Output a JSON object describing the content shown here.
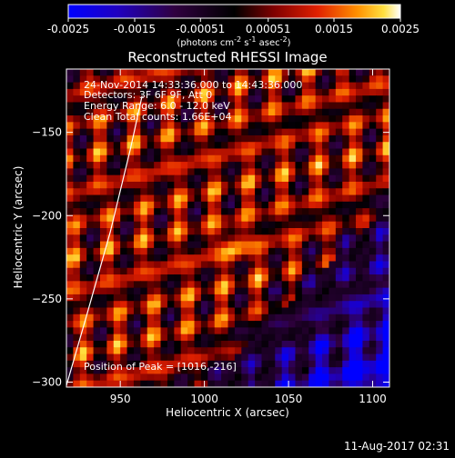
{
  "chart_data": {
    "type": "heatmap",
    "title": "Reconstructed RHESSI Image",
    "xlabel": "Heliocentric X (arcsec)",
    "ylabel": "Heliocentric Y (arcsec)",
    "xlim": [
      918,
      1110
    ],
    "ylim": [
      -303,
      -112
    ],
    "x_ticks": [
      950,
      1000,
      1050,
      1100
    ],
    "y_ticks": [
      -150,
      -200,
      -250,
      -300
    ],
    "colorbar": {
      "ticks": [
        -0.0025,
        -0.0015,
        -0.00051,
        0.00051,
        0.0015,
        0.0025
      ],
      "tick_labels": [
        "-0.0025",
        "-0.0015",
        "-0.00051",
        "0.00051",
        "0.0015",
        "0.0025"
      ],
      "range": [
        -0.0025,
        0.0025
      ],
      "units_prefix": "(photons cm",
      "units_sup1": "-2",
      "units_mid1": " s",
      "units_sup2": "-1",
      "units_mid2": " asec",
      "units_sup3": "-2",
      "units_suffix": ")"
    },
    "annotations": [
      "24-Nov-2014 14:33:36.000 to 14:43:36.000",
      "Detectors: 3F 6F 9F, Att 0",
      "Energy Range: 6.0 - 12.0 keV",
      "Clean    Total counts: 1.66E+04"
    ],
    "peak_text": "Position of Peak = [1016,-216]",
    "peak": [
      1016,
      -216
    ],
    "limb_points": [
      [
        918,
        -302
      ],
      [
        930,
        -260
      ],
      [
        944,
        -210
      ],
      [
        956,
        -160
      ],
      [
        963,
        -128
      ]
    ],
    "grid": false
  },
  "footer": {
    "date": "11-Aug-2017 02:31"
  },
  "colors": {
    "background": "#000000",
    "text": "#ffffff",
    "limb": "#ffffff"
  }
}
